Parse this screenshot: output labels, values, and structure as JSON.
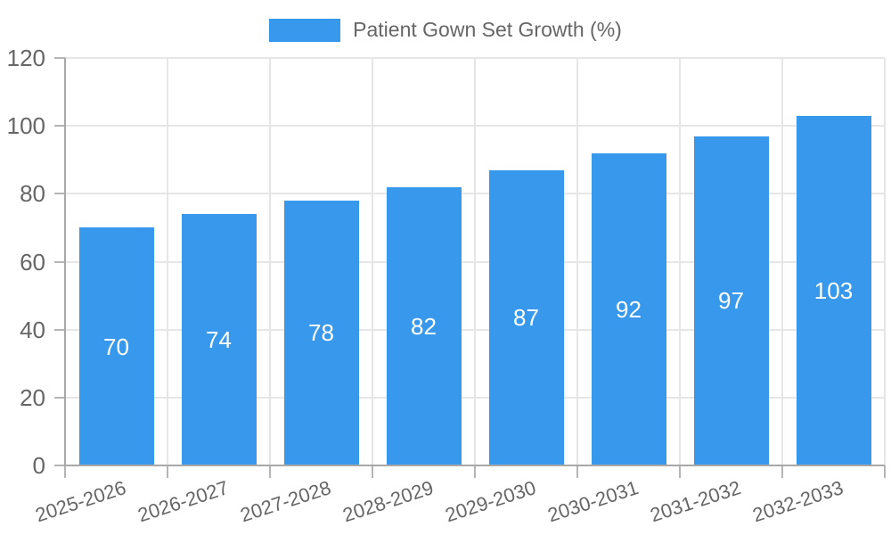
{
  "page": {
    "background": "#ffffff"
  },
  "chart_data": {
    "type": "bar",
    "title": "Patient Gown Set Growth (%)",
    "legend": {
      "position": "top",
      "label": "Patient Gown Set Growth (%)",
      "swatch_color": "#3899ec"
    },
    "categories": [
      "2025-2026",
      "2026-2027",
      "2027-2028",
      "2028-2029",
      "2029-2030",
      "2030-2031",
      "2031-2032",
      "2032-2033"
    ],
    "values": [
      70,
      74,
      78,
      82,
      87,
      92,
      97,
      103
    ],
    "ylim": [
      0,
      120
    ],
    "yticks": [
      0,
      20,
      40,
      60,
      80,
      100,
      120
    ],
    "grid": true,
    "x_label_rotation_deg": -18,
    "colors": {
      "bar": "#3899ec",
      "bar_value_label": "#ffffff",
      "axis_text": "#666666",
      "grid_line": "#e6e6e6",
      "axis_line": "#a8a8a8",
      "tick_mark": "#b5b5b5"
    }
  }
}
